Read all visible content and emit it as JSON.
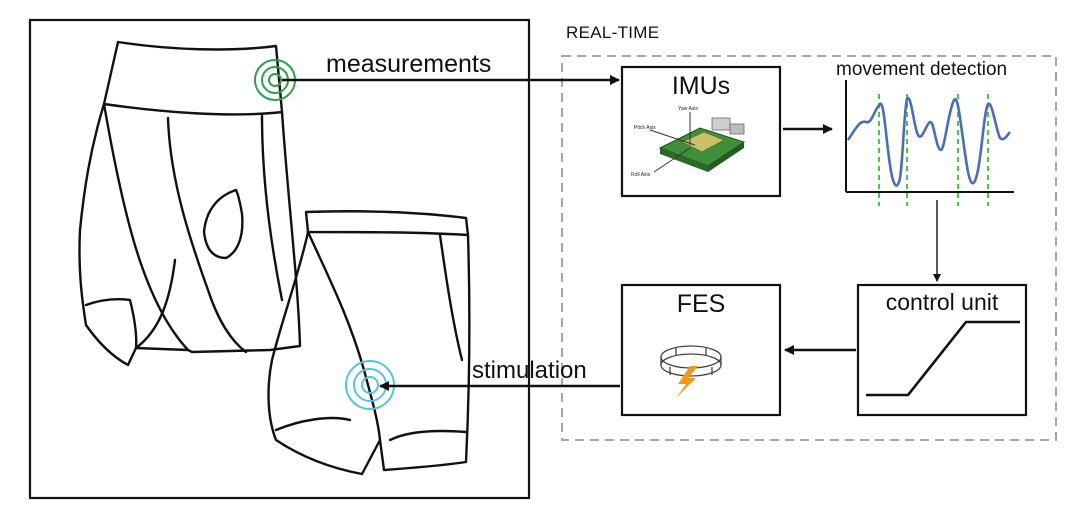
{
  "labels": {
    "realtime": "REAL-TIME",
    "measurements": "measurements",
    "stimulation": "stimulation",
    "imus": "IMUs",
    "movement_detection": "movement detection",
    "fes": "FES",
    "control_unit": "control unit"
  },
  "imu_board": {
    "yaw_axis": "Yaw Axis",
    "pitch_axis": "Pitch Axis",
    "roll_axis": "Roll Axis"
  },
  "colors": {
    "sensor_ring": "#2e9e4f",
    "stim_ring": "#55c3de",
    "signal_line": "#4a6db5",
    "event_marker": "#4fc24a",
    "bolt": "#f29a17",
    "board_green": "#3f8f3a",
    "dashed_border": "#9a9a9a"
  },
  "icons": [
    "sensor-ring-icon",
    "stimulation-ring-icon",
    "lightning-bolt-icon",
    "imu-board-icon",
    "electrode-band-icon"
  ]
}
